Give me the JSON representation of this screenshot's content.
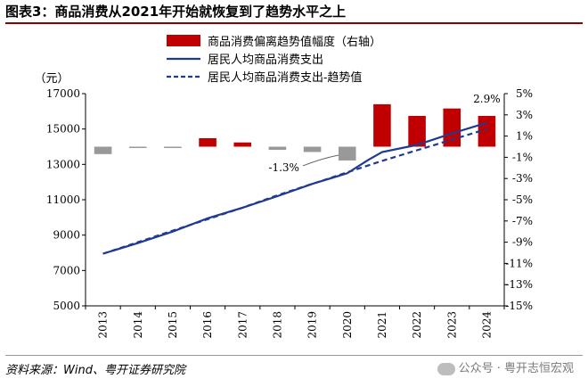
{
  "header": {
    "title": "图表3：商品消费从2021年开始就恢复到了趋势水平之上",
    "source": "资料来源：Wind、粤开证券研究院",
    "watermark": "公众号 · 粤开志恒宏观"
  },
  "chart_data": {
    "type": "bar+line",
    "title": "",
    "ylabel_left": "（元）",
    "ylabel_right": "",
    "left_axis": {
      "min": 5000,
      "max": 17000,
      "ticks": [
        "5000",
        "7000",
        "9000",
        "11000",
        "13000",
        "15000",
        "17000"
      ]
    },
    "right_axis": {
      "min": -15,
      "max": 5,
      "ticks": [
        "5%",
        "3%",
        "1%",
        "-1%",
        "-3%",
        "-5%",
        "-7%",
        "-9%",
        "-11%",
        "-13%",
        "-15%"
      ]
    },
    "categories": [
      "2013",
      "2014",
      "2015",
      "2016",
      "2017",
      "2018",
      "2019",
      "2020",
      "2021",
      "2022",
      "2023",
      "2024"
    ],
    "series": [
      {
        "name": "商品消费偏离趋势值幅度（右轴）",
        "type": "bar",
        "axis": "right",
        "color_positive": "#c00000",
        "color_negative": "#999999",
        "values": [
          -0.7,
          -0.1,
          -0.1,
          0.8,
          0.4,
          -0.3,
          -0.5,
          -1.3,
          4.0,
          2.9,
          3.6,
          2.9
        ]
      },
      {
        "name": "居民人均商品消费支出",
        "type": "line",
        "axis": "left",
        "style": "solid",
        "color": "#1f3a93",
        "points": [
          [
            2013,
            7950
          ],
          [
            2014,
            8550
          ],
          [
            2015,
            9200
          ],
          [
            2016,
            9950
          ],
          [
            2017,
            10550
          ],
          [
            2018,
            11200
          ],
          [
            2019,
            11900
          ],
          [
            2020,
            12500
          ],
          [
            2020.6,
            13250
          ],
          [
            2021,
            13700
          ],
          [
            2022,
            14100
          ],
          [
            2023,
            14750
          ],
          [
            2024,
            15350
          ]
        ]
      },
      {
        "name": "居民人均商品消费支出-趋势值",
        "type": "line",
        "axis": "left",
        "style": "dashed",
        "color": "#1f3a93",
        "points": [
          [
            2013,
            7950
          ],
          [
            2014,
            8600
          ],
          [
            2015,
            9250
          ],
          [
            2016,
            9900
          ],
          [
            2017,
            10550
          ],
          [
            2018,
            11250
          ],
          [
            2019,
            11900
          ],
          [
            2020,
            12550
          ],
          [
            2021,
            13200
          ],
          [
            2022,
            13800
          ],
          [
            2023,
            14400
          ],
          [
            2024,
            15000
          ]
        ]
      }
    ],
    "annotations": [
      {
        "text": "-1.3%",
        "category": "2020",
        "value": -1.3
      },
      {
        "text": "2.9%",
        "category": "2024",
        "value": 2.9
      }
    ],
    "legend_position": "top"
  }
}
